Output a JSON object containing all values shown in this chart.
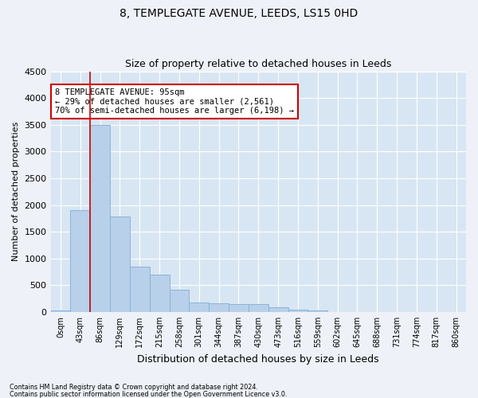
{
  "title1": "8, TEMPLEGATE AVENUE, LEEDS, LS15 0HD",
  "title2": "Size of property relative to detached houses in Leeds",
  "xlabel": "Distribution of detached houses by size in Leeds",
  "ylabel": "Number of detached properties",
  "bar_labels": [
    "0sqm",
    "43sqm",
    "86sqm",
    "129sqm",
    "172sqm",
    "215sqm",
    "258sqm",
    "301sqm",
    "344sqm",
    "387sqm",
    "430sqm",
    "473sqm",
    "516sqm",
    "559sqm",
    "602sqm",
    "645sqm",
    "688sqm",
    "731sqm",
    "774sqm",
    "817sqm",
    "860sqm"
  ],
  "bar_values": [
    30,
    1900,
    3500,
    1780,
    850,
    700,
    420,
    180,
    160,
    150,
    150,
    90,
    40,
    30,
    0,
    0,
    0,
    0,
    0,
    0,
    0
  ],
  "bar_color": "#b8d0ea",
  "bar_edge_color": "#8ab4d8",
  "ylim": [
    0,
    4500
  ],
  "yticks": [
    0,
    500,
    1000,
    1500,
    2000,
    2500,
    3000,
    3500,
    4000,
    4500
  ],
  "vline_x_idx": 2,
  "vline_color": "#cc0000",
  "annotation_line1": "8 TEMPLEGATE AVENUE: 95sqm",
  "annotation_line2": "← 29% of detached houses are smaller (2,561)",
  "annotation_line3": "70% of semi-detached houses are larger (6,198) →",
  "footer1": "Contains HM Land Registry data © Crown copyright and database right 2024.",
  "footer2": "Contains public sector information licensed under the Open Government Licence v3.0.",
  "bg_color": "#eef2f8",
  "plot_bg_color": "#d8e6f3",
  "grid_color": "#ffffff",
  "title1_fontsize": 10,
  "title2_fontsize": 9
}
